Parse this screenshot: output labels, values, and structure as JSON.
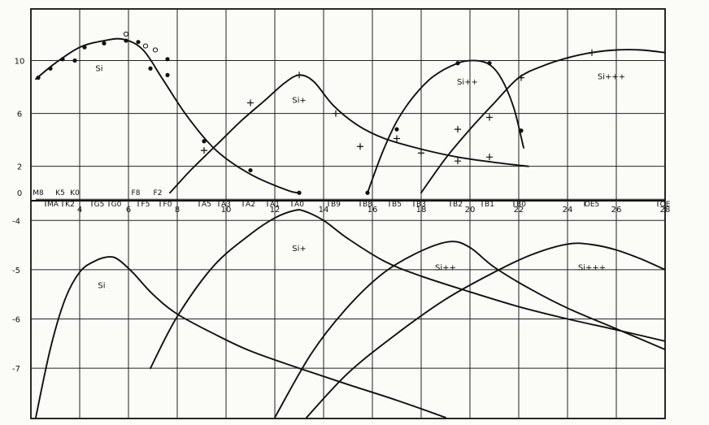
{
  "chart_data": [
    {
      "type": "line",
      "panel": "top",
      "y_ticks": [
        "10",
        "6",
        "2",
        "0"
      ],
      "y_tick_values": [
        10,
        6,
        2,
        0
      ],
      "x_ticks": [
        "4",
        "6",
        "8",
        "10",
        "12",
        "14",
        "16",
        "18",
        "20",
        "22",
        "24",
        "26",
        "28"
      ],
      "x_tick_values": [
        4,
        6,
        8,
        10,
        12,
        14,
        16,
        18,
        20,
        22,
        24,
        26,
        28
      ],
      "xlim": [
        2,
        28
      ],
      "ylim": [
        -0.6,
        13.9
      ],
      "grid": true,
      "spectral_types": [
        {
          "label": "M8",
          "x": 2.3,
          "row": 0
        },
        {
          "label": "MA",
          "x": 2.9,
          "row": 1
        },
        {
          "label": "K5",
          "x": 3.2,
          "row": 0
        },
        {
          "label": "K2",
          "x": 3.6,
          "row": 1
        },
        {
          "label": "K0",
          "x": 3.8,
          "row": 0
        },
        {
          "label": "G5",
          "x": 4.8,
          "row": 1
        },
        {
          "label": "G0",
          "x": 5.5,
          "row": 1
        },
        {
          "label": "F8",
          "x": 6.3,
          "row": 0
        },
        {
          "label": "F5",
          "x": 6.7,
          "row": 1
        },
        {
          "label": "F2",
          "x": 7.2,
          "row": 0
        },
        {
          "label": "F0",
          "x": 7.6,
          "row": 1
        },
        {
          "label": "A5",
          "x": 9.2,
          "row": 1
        },
        {
          "label": "A3",
          "x": 10.0,
          "row": 1
        },
        {
          "label": "A2",
          "x": 11.0,
          "row": 1
        },
        {
          "label": "A1",
          "x": 12.0,
          "row": 1
        },
        {
          "label": "A0",
          "x": 13.0,
          "row": 1
        },
        {
          "label": "B9",
          "x": 14.5,
          "row": 1
        },
        {
          "label": "B8",
          "x": 15.8,
          "row": 1
        },
        {
          "label": "B5",
          "x": 17.0,
          "row": 1
        },
        {
          "label": "B3",
          "x": 18.0,
          "row": 1
        },
        {
          "label": "B2",
          "x": 19.5,
          "row": 1
        },
        {
          "label": "B1",
          "x": 20.8,
          "row": 1
        },
        {
          "label": "B0",
          "x": 22.1,
          "row": 1
        },
        {
          "label": "OE5",
          "x": 25.0,
          "row": 1
        },
        {
          "label": "OE",
          "x": 28.0,
          "row": 1
        }
      ],
      "series": [
        {
          "name": "Si",
          "x": [
            2.2,
            3.0,
            4.0,
            5.0,
            5.8,
            6.6,
            7.4,
            8.4,
            9.6,
            11.0,
            12.5,
            13.0
          ],
          "y": [
            8.6,
            9.8,
            11.0,
            11.5,
            11.6,
            10.8,
            8.6,
            5.8,
            3.2,
            1.4,
            0.2,
            0.0
          ]
        },
        {
          "name": "Si+",
          "x": [
            7.7,
            8.6,
            9.6,
            10.6,
            11.6,
            12.4,
            13.0,
            13.6,
            14.4,
            15.4,
            16.5,
            18.0,
            19.5,
            21.0,
            22.4
          ],
          "y": [
            0.0,
            1.8,
            3.6,
            5.4,
            7.0,
            8.3,
            8.9,
            8.4,
            6.6,
            5.1,
            4.1,
            3.3,
            2.7,
            2.3,
            2.0
          ]
        },
        {
          "name": "Si++",
          "x": [
            15.8,
            16.4,
            17.0,
            17.7,
            18.5,
            19.5,
            20.2,
            20.8,
            21.3,
            21.8,
            22.2
          ],
          "y": [
            0.0,
            3.0,
            5.4,
            7.3,
            8.8,
            9.8,
            10.0,
            9.7,
            8.6,
            6.4,
            3.4
          ]
        },
        {
          "name": "Si+++",
          "x": [
            18.0,
            19.0,
            20.0,
            21.0,
            22.0,
            23.0,
            24.0,
            25.0,
            26.0,
            27.0,
            28.0
          ],
          "y": [
            0.0,
            2.6,
            4.8,
            6.8,
            8.7,
            9.6,
            10.2,
            10.6,
            10.8,
            10.8,
            10.6
          ]
        }
      ],
      "points": [
        {
          "series": "Si",
          "marker": "dot",
          "x": [
            2.3,
            2.8,
            3.3,
            3.8,
            4.2,
            5.0,
            5.9,
            6.4,
            6.9,
            7.6,
            7.6,
            9.1,
            11.0,
            13.0
          ],
          "y": [
            8.7,
            9.4,
            10.1,
            10.0,
            11.0,
            11.3,
            11.5,
            11.4,
            9.4,
            10.1,
            8.9,
            3.9,
            1.7,
            0.0
          ]
        },
        {
          "series": "Si",
          "marker": "circle",
          "x": [
            5.9,
            6.7,
            7.1
          ],
          "y": [
            12.0,
            11.1,
            10.8
          ]
        },
        {
          "series": "Si+",
          "marker": "plus",
          "x": [
            9.1,
            11.0,
            13.0,
            14.5,
            15.5,
            17.0,
            18.0,
            19.5,
            20.8
          ],
          "y": [
            3.2,
            6.8,
            8.9,
            6.0,
            3.5,
            4.1,
            3.0,
            2.4,
            2.7
          ]
        },
        {
          "series": "Si++",
          "marker": "dot",
          "x": [
            17.0,
            19.5,
            20.8,
            22.1,
            15.8
          ],
          "y": [
            4.8,
            9.8,
            9.8,
            4.7,
            0.0
          ]
        },
        {
          "series": "Si+++",
          "marker": "plus",
          "x": [
            19.5,
            20.8,
            22.1,
            25.0
          ],
          "y": [
            4.8,
            5.7,
            8.7,
            10.6
          ]
        }
      ],
      "curve_labels": [
        {
          "text": "Si",
          "x": 4.8,
          "y": 9.2
        },
        {
          "text": "Si+",
          "x": 13.0,
          "y": 6.8
        },
        {
          "text": "Si++",
          "x": 19.9,
          "y": 8.2
        },
        {
          "text": "Si+++",
          "x": 25.8,
          "y": 8.6
        }
      ]
    },
    {
      "type": "line",
      "panel": "bottom",
      "y_ticks": [
        "-4",
        "-5",
        "-6",
        "-7"
      ],
      "y_tick_values": [
        -4,
        -5,
        -6,
        -7
      ],
      "xlim": [
        2,
        28
      ],
      "ylim": [
        -8.02,
        -3.6
      ],
      "grid": true,
      "series": [
        {
          "name": "Si",
          "x": [
            2.2,
            2.8,
            3.4,
            4.0,
            4.6,
            5.2,
            5.6,
            6.2,
            7.0,
            8.0,
            9.5,
            11.0,
            13.0,
            15.0,
            17.0,
            19.0
          ],
          "y": [
            -8.0,
            -6.6,
            -5.6,
            -5.05,
            -4.83,
            -4.74,
            -4.8,
            -5.07,
            -5.5,
            -5.9,
            -6.3,
            -6.65,
            -7.0,
            -7.33,
            -7.65,
            -8.0
          ]
        },
        {
          "name": "Si+",
          "x": [
            6.9,
            8.0,
            9.5,
            11.0,
            12.0,
            12.8,
            13.2,
            14.0,
            15.0,
            16.5,
            18.0,
            20.0,
            22.0,
            24.0,
            26.0,
            28.0
          ],
          "y": [
            -7.0,
            -5.95,
            -4.92,
            -4.28,
            -3.95,
            -3.8,
            -3.81,
            -4.0,
            -4.37,
            -4.83,
            -5.13,
            -5.45,
            -5.75,
            -6.0,
            -6.22,
            -6.45
          ]
        },
        {
          "name": "Si++",
          "x": [
            12.0,
            13.5,
            15.0,
            16.5,
            18.0,
            19.2,
            20.0,
            21.0,
            22.5,
            24.0,
            26.0,
            28.0
          ],
          "y": [
            -8.0,
            -6.7,
            -5.75,
            -5.05,
            -4.62,
            -4.43,
            -4.55,
            -4.95,
            -5.4,
            -5.78,
            -6.2,
            -6.62
          ]
        },
        {
          "name": "Si+++",
          "x": [
            13.3,
            15.0,
            17.0,
            19.0,
            21.0,
            22.5,
            24.0,
            25.0,
            26.0,
            27.0,
            28.0
          ],
          "y": [
            -8.0,
            -7.1,
            -6.3,
            -5.6,
            -5.05,
            -4.7,
            -4.48,
            -4.49,
            -4.6,
            -4.78,
            -5.0
          ]
        }
      ],
      "curve_labels": [
        {
          "text": "Si",
          "x": 4.9,
          "y": -5.37
        },
        {
          "text": "Si+",
          "x": 13.0,
          "y": -4.62
        },
        {
          "text": "Si++",
          "x": 19.0,
          "y": -5.01
        },
        {
          "text": "Si+++",
          "x": 25.0,
          "y": -5.01
        }
      ]
    }
  ]
}
